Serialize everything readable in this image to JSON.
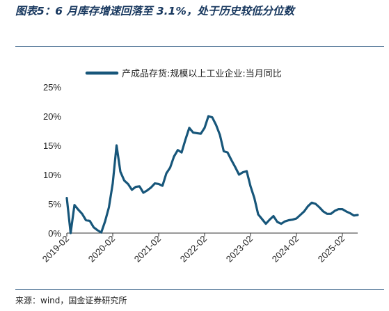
{
  "header": {
    "title": "图表5：6 月库存增速回落至 3.1%，处于历史较低分位数"
  },
  "footer": {
    "source": "来源：wind，国金证券研究所"
  },
  "colors": {
    "series": "#17567a",
    "rule": "#1f4e79",
    "title": "#17375e"
  },
  "chart_data": {
    "type": "line",
    "title": "",
    "xlabel": "",
    "ylabel": "",
    "ylim": [
      0,
      25
    ],
    "yticks": [
      "0%",
      "5%",
      "10%",
      "15%",
      "20%",
      "25%"
    ],
    "xticks": [
      "2019-02",
      "2020-02",
      "2021-02",
      "2022-02",
      "2023-02",
      "2024-02",
      "2025-02"
    ],
    "grid": false,
    "legend": "top",
    "x_start": "2019-02",
    "x_end": "2025-06",
    "series": [
      {
        "name": "产成品存货:规模以上工业企业:当月同比",
        "x": [
          "2019-02",
          "2019-03",
          "2019-04",
          "2019-05",
          "2019-06",
          "2019-07",
          "2019-08",
          "2019-09",
          "2019-10",
          "2019-11",
          "2019-12",
          "2020-01",
          "2020-02",
          "2020-03",
          "2020-04",
          "2020-05",
          "2020-06",
          "2020-07",
          "2020-08",
          "2020-09",
          "2020-10",
          "2020-11",
          "2020-12",
          "2021-01",
          "2021-02",
          "2021-03",
          "2021-04",
          "2021-05",
          "2021-06",
          "2021-07",
          "2021-08",
          "2021-09",
          "2021-10",
          "2021-11",
          "2021-12",
          "2022-01",
          "2022-02",
          "2022-03",
          "2022-04",
          "2022-05",
          "2022-06",
          "2022-07",
          "2022-08",
          "2022-09",
          "2022-10",
          "2022-11",
          "2022-12",
          "2023-01",
          "2023-02",
          "2023-03",
          "2023-04",
          "2023-05",
          "2023-06",
          "2023-07",
          "2023-08",
          "2023-09",
          "2023-10",
          "2023-11",
          "2023-12",
          "2024-01",
          "2024-02",
          "2024-03",
          "2024-04",
          "2024-05",
          "2024-06",
          "2024-07",
          "2024-08",
          "2024-09",
          "2024-10",
          "2024-11",
          "2024-12",
          "2025-01",
          "2025-02",
          "2025-03",
          "2025-04",
          "2025-05",
          "2025-06"
        ],
        "values": [
          6.0,
          0.0,
          4.8,
          4.0,
          3.3,
          2.2,
          2.1,
          1.0,
          0.5,
          0.1,
          2.0,
          4.4,
          8.5,
          15.0,
          10.5,
          9.0,
          8.4,
          7.4,
          7.9,
          8.0,
          6.9,
          7.3,
          7.8,
          8.5,
          8.4,
          8.1,
          10.2,
          11.2,
          13.1,
          14.2,
          13.8,
          16.0,
          18.0,
          17.2,
          17.1,
          17.0,
          18.0,
          20.0,
          19.8,
          18.5,
          16.8,
          14.0,
          13.8,
          12.5,
          11.3,
          10.0,
          10.4,
          10.6,
          8.0,
          6.0,
          3.2,
          2.4,
          1.6,
          2.3,
          2.9,
          1.9,
          1.6,
          2.0,
          2.2,
          2.3,
          2.5,
          3.1,
          3.7,
          4.6,
          5.2,
          5.0,
          4.4,
          3.7,
          3.3,
          3.3,
          3.8,
          4.1,
          4.1,
          3.7,
          3.4,
          3.0,
          3.1
        ]
      }
    ]
  }
}
